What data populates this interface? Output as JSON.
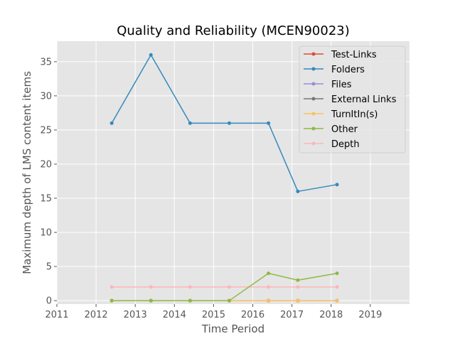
{
  "chart_data": {
    "type": "line",
    "title": "Quality and Reliability (MCEN90023)",
    "xlabel": "Time Period",
    "ylabel": "Maximum depth of LMS content items",
    "xlim": [
      2011,
      2020
    ],
    "ylim": [
      -0.5,
      38
    ],
    "x_ticks": [
      2011,
      2012,
      2013,
      2014,
      2015,
      2016,
      2017,
      2018,
      2019
    ],
    "y_ticks": [
      0,
      5,
      10,
      15,
      20,
      25,
      30,
      35
    ],
    "grid": true,
    "legend_position": "top-right",
    "x": [
      2012.4,
      2013.4,
      2014.4,
      2015.4,
      2016.4,
      2017.15,
      2018.15
    ],
    "series": [
      {
        "name": "Test-Links",
        "color": "#e24a33",
        "values": [
          0,
          0,
          0,
          0,
          0,
          0,
          0
        ]
      },
      {
        "name": "Folders",
        "color": "#348abd",
        "values": [
          26,
          36,
          26,
          26,
          26,
          16,
          17
        ]
      },
      {
        "name": "Files",
        "color": "#988ed5",
        "values": [
          0,
          0,
          0,
          0,
          0,
          0,
          0
        ]
      },
      {
        "name": "External Links",
        "color": "#777777",
        "values": [
          0,
          0,
          0,
          0,
          0,
          0,
          0
        ]
      },
      {
        "name": "TurnItIn(s)",
        "color": "#fbc15e",
        "values": [
          0,
          0,
          0,
          0,
          0,
          0,
          0
        ]
      },
      {
        "name": "Other",
        "color": "#8eba42",
        "values": [
          0,
          0,
          0,
          0,
          4,
          3,
          4
        ]
      },
      {
        "name": "Depth",
        "color": "#ffb5b8",
        "values": [
          2,
          2,
          2,
          2,
          2,
          2,
          2
        ]
      }
    ],
    "draw_order": [
      6,
      0,
      2,
      3,
      4,
      5,
      1
    ]
  }
}
